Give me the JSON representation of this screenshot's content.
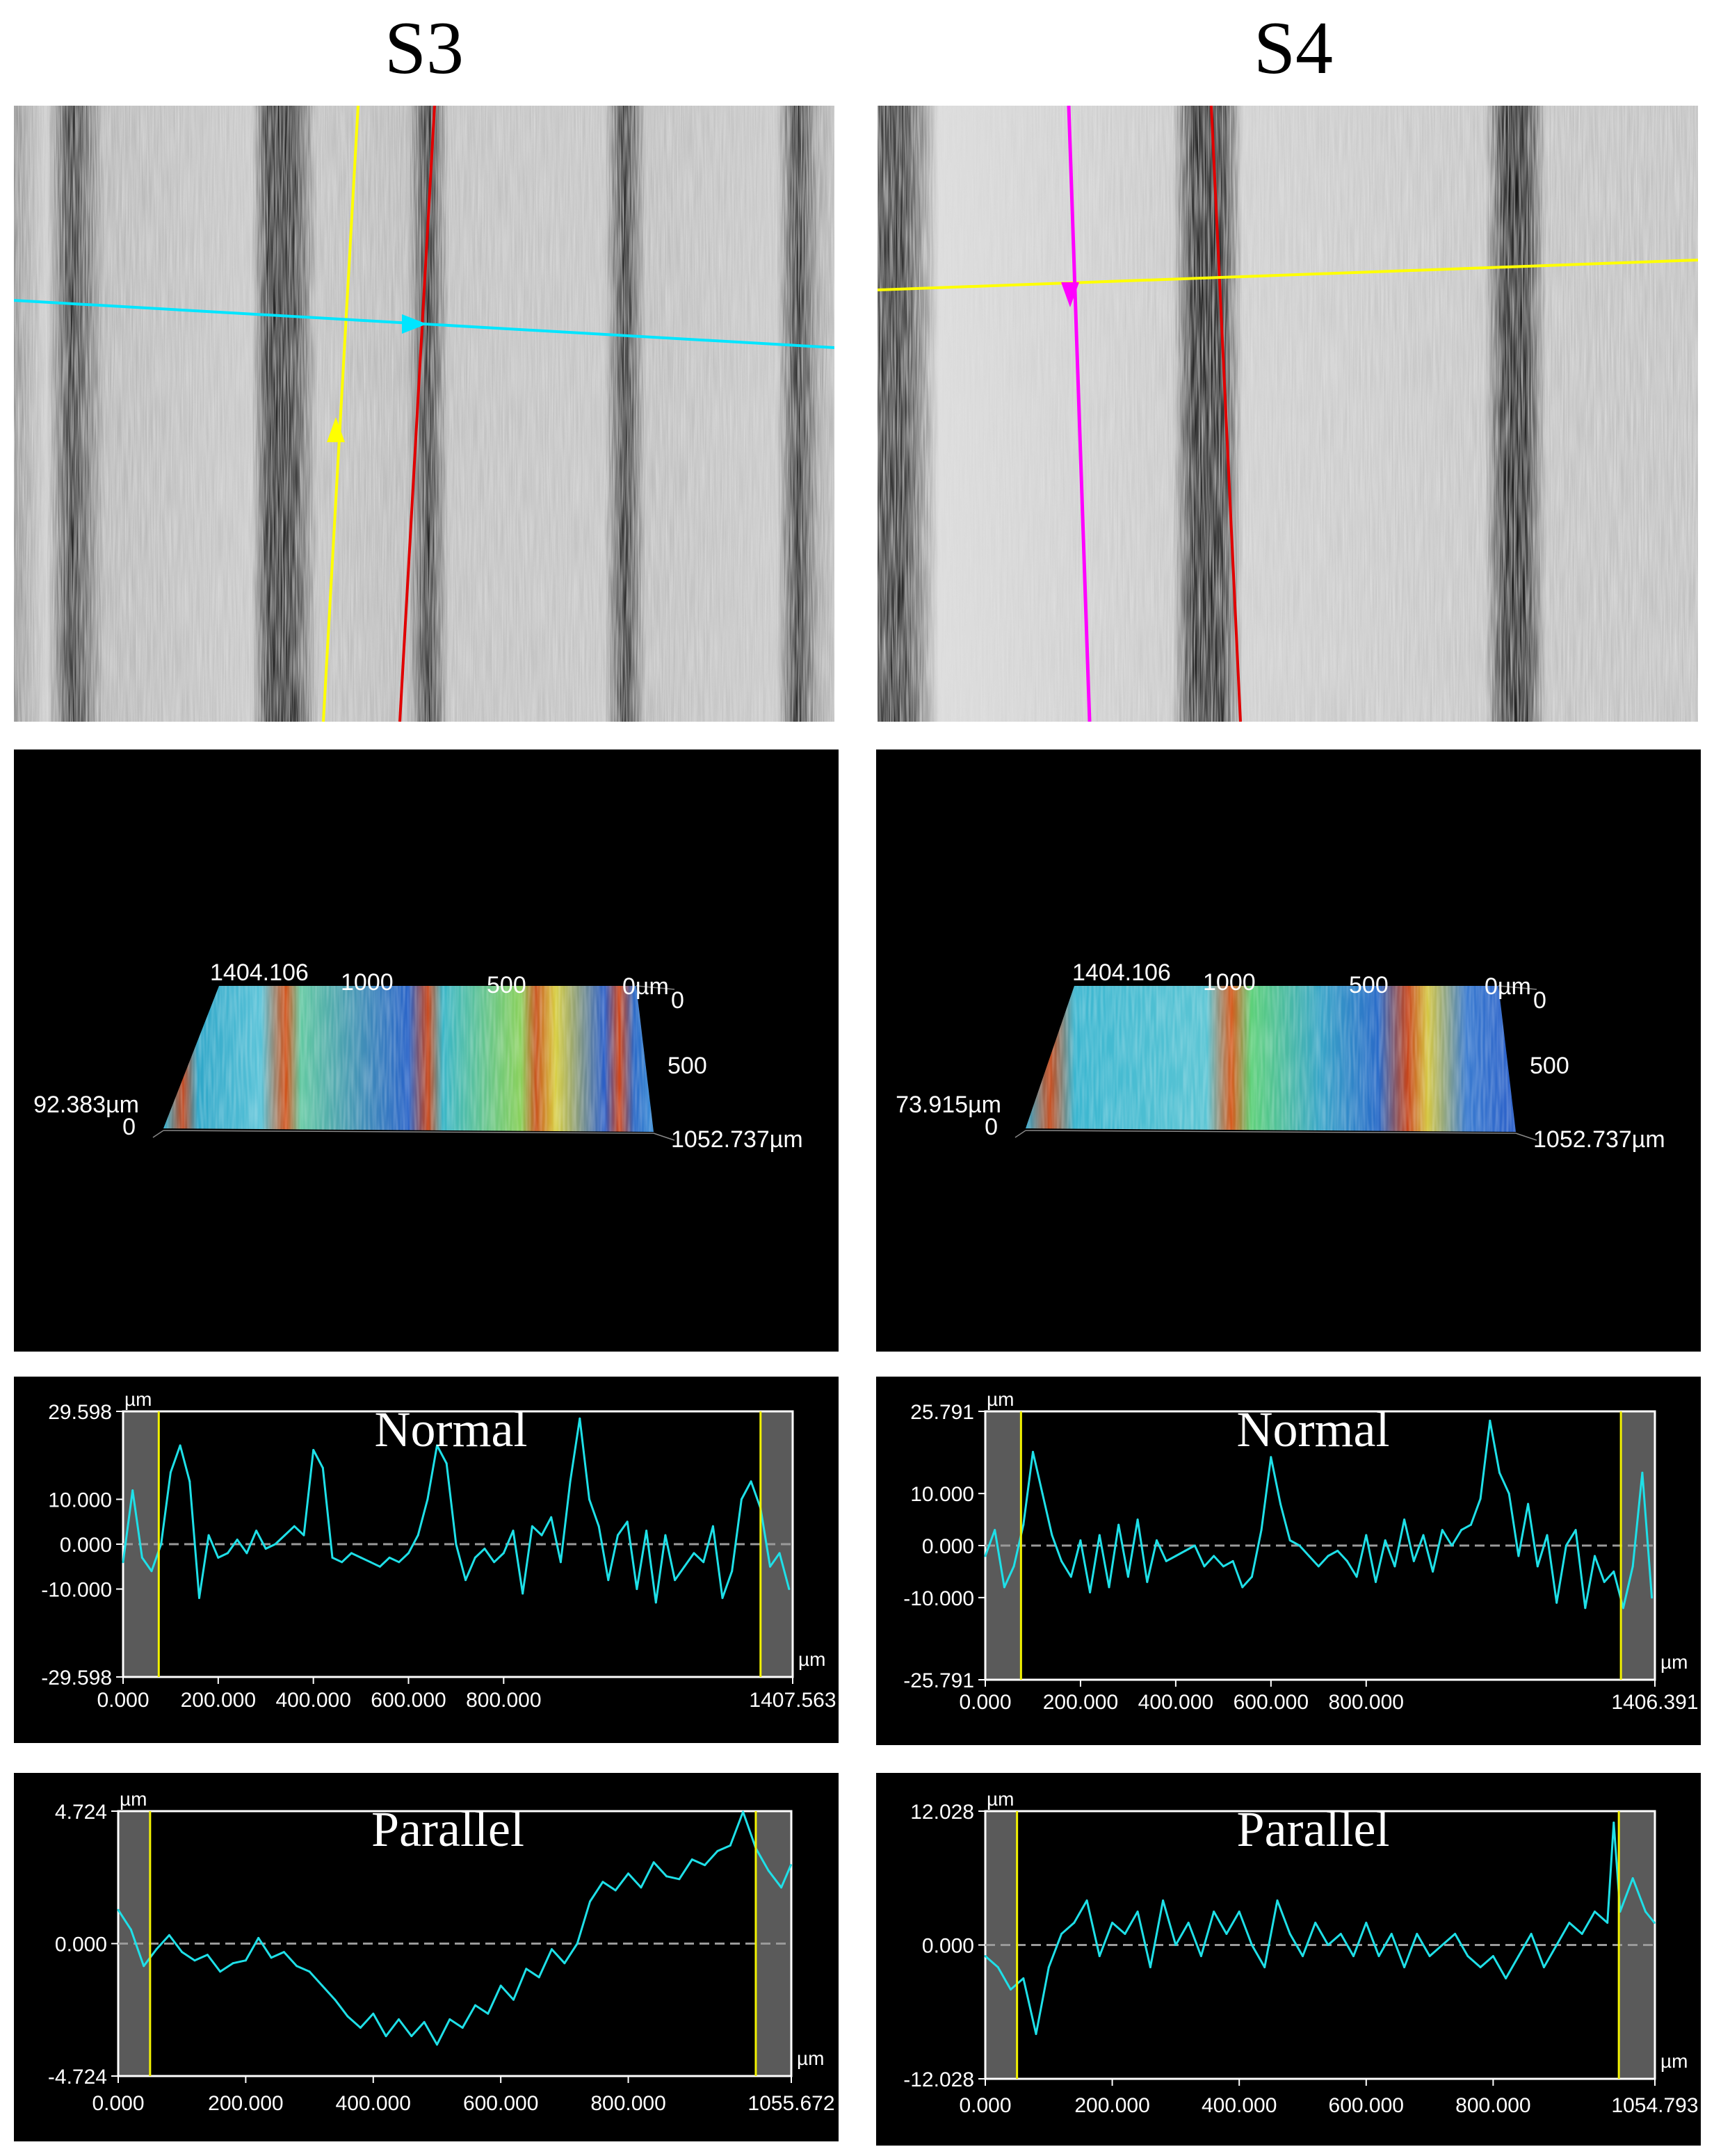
{
  "columns": [
    {
      "title": "S3",
      "surface3d": {
        "x_ticks": [
          "1404.106",
          "1000",
          "500",
          "0µm"
        ],
        "y_ticks": [
          "0",
          "500",
          "1052.737µm"
        ],
        "z_ticks": [
          "92.383µm",
          "0"
        ]
      }
    },
    {
      "title": "S4",
      "surface3d": {
        "x_ticks": [
          "1404.106",
          "1000",
          "500",
          "0µm"
        ],
        "y_ticks": [
          "0",
          "500",
          "1052.737µm"
        ],
        "z_ticks": [
          "73.915µm",
          "0"
        ]
      }
    }
  ],
  "colors": {
    "trace": "#1ee0e8",
    "marker": "#f2f200",
    "frame": "#ffffff",
    "zero_line": "#9a9a9a",
    "excluded_region": "#5a5a5a",
    "s3_line_vertical": "#ffff00",
    "s3_line_horizontal": "#00e5ff",
    "s3_line_red": "#e00000",
    "s4_line_vertical": "#ff00ff",
    "s4_line_horizontal": "#ffff00",
    "s4_line_red": "#e00000"
  },
  "chart_data": [
    {
      "type": "line",
      "title": "Normal",
      "sample": "S3",
      "unit_x": "µm",
      "unit_y": "µm",
      "ylim": [
        -29.598,
        29.598
      ],
      "xlim": [
        0,
        1407.563
      ],
      "y_ticks": [
        "29.598",
        "10.000",
        "0.000",
        "-10.000",
        "-29.598"
      ],
      "x_ticks": [
        "0.000",
        "200.000",
        "400.000",
        "600.000",
        "800.000",
        "1407.563"
      ],
      "markers_x": [
        75,
        1340
      ],
      "x": [
        0,
        20,
        40,
        60,
        80,
        100,
        120,
        140,
        160,
        180,
        200,
        220,
        240,
        260,
        280,
        300,
        320,
        340,
        360,
        380,
        400,
        420,
        440,
        460,
        480,
        500,
        520,
        540,
        560,
        580,
        600,
        620,
        640,
        660,
        680,
        700,
        720,
        740,
        760,
        780,
        800,
        820,
        840,
        860,
        880,
        900,
        920,
        940,
        960,
        980,
        1000,
        1020,
        1040,
        1060,
        1080,
        1100,
        1120,
        1140,
        1160,
        1180,
        1200,
        1220,
        1240,
        1260,
        1280,
        1300,
        1320,
        1340,
        1360,
        1380,
        1400
      ],
      "values": [
        -4,
        12,
        -3,
        -6,
        0,
        16,
        22,
        14,
        -12,
        2,
        -3,
        -2,
        1,
        -2,
        3,
        -1,
        0,
        2,
        4,
        2,
        21,
        17,
        -3,
        -4,
        -2,
        -3,
        -4,
        -5,
        -3,
        -4,
        -2,
        2,
        10,
        22,
        18,
        0,
        -8,
        -3,
        -1,
        -4,
        -2,
        3,
        -11,
        4,
        2,
        6,
        -4,
        14,
        28,
        10,
        4,
        -8,
        2,
        5,
        -10,
        3,
        -13,
        2,
        -8,
        -5,
        -2,
        -4,
        4,
        -12,
        -6,
        10,
        14,
        8,
        -5,
        -2,
        -10
      ]
    },
    {
      "type": "line",
      "title": "Normal",
      "sample": "S4",
      "unit_x": "µm",
      "unit_y": "µm",
      "ylim": [
        -25.791,
        25.791
      ],
      "xlim": [
        0,
        1406.391
      ],
      "y_ticks": [
        "25.791",
        "10.000",
        "0.000",
        "-10.000",
        "-25.791"
      ],
      "x_ticks": [
        "0.000",
        "200.000",
        "400.000",
        "600.000",
        "800.000",
        "1406.391"
      ],
      "markers_x": [
        75,
        1335
      ],
      "x": [
        0,
        20,
        40,
        60,
        80,
        100,
        120,
        140,
        160,
        180,
        200,
        220,
        240,
        260,
        280,
        300,
        320,
        340,
        360,
        380,
        400,
        420,
        440,
        460,
        480,
        500,
        520,
        540,
        560,
        580,
        600,
        620,
        640,
        660,
        680,
        700,
        720,
        740,
        760,
        780,
        800,
        820,
        840,
        860,
        880,
        900,
        920,
        940,
        960,
        980,
        1000,
        1020,
        1040,
        1060,
        1080,
        1100,
        1120,
        1140,
        1160,
        1180,
        1200,
        1220,
        1240,
        1260,
        1280,
        1300,
        1320,
        1340,
        1360,
        1380,
        1400
      ],
      "values": [
        -2,
        3,
        -8,
        -4,
        4,
        18,
        10,
        2,
        -3,
        -6,
        1,
        -9,
        2,
        -8,
        4,
        -6,
        5,
        -7,
        1,
        -3,
        -2,
        -1,
        0,
        -4,
        -2,
        -4,
        -3,
        -8,
        -6,
        3,
        17,
        8,
        1,
        0,
        -2,
        -4,
        -2,
        -1,
        -3,
        -6,
        2,
        -7,
        1,
        -4,
        5,
        -3,
        2,
        -5,
        3,
        0,
        3,
        4,
        9,
        24,
        14,
        10,
        -2,
        8,
        -4,
        2,
        -11,
        0,
        3,
        -12,
        -2,
        -7,
        -5,
        -12,
        -4,
        14,
        -10
      ]
    },
    {
      "type": "line",
      "title": "Parallel",
      "sample": "S3",
      "unit_x": "µm",
      "unit_y": "µm",
      "ylim": [
        -4.724,
        4.724
      ],
      "xlim": [
        0,
        1055.672
      ],
      "y_ticks": [
        "4.724",
        "0.000",
        "-4.724"
      ],
      "x_ticks": [
        "0.000",
        "200.000",
        "400.000",
        "600.000",
        "800.000",
        "1055.672"
      ],
      "markers_x": [
        50,
        1000
      ],
      "x": [
        0,
        20,
        40,
        60,
        80,
        100,
        120,
        140,
        160,
        180,
        200,
        220,
        240,
        260,
        280,
        300,
        320,
        340,
        360,
        380,
        400,
        420,
        440,
        460,
        480,
        500,
        520,
        540,
        560,
        580,
        600,
        620,
        640,
        660,
        680,
        700,
        720,
        740,
        760,
        780,
        800,
        820,
        840,
        860,
        880,
        900,
        920,
        940,
        960,
        980,
        1000,
        1020,
        1040,
        1055
      ],
      "values": [
        1.2,
        0.5,
        -0.8,
        -0.2,
        0.3,
        -0.3,
        -0.6,
        -0.4,
        -1.0,
        -0.7,
        -0.6,
        0.2,
        -0.5,
        -0.3,
        -0.8,
        -1.0,
        -1.5,
        -2.0,
        -2.6,
        -3.0,
        -2.5,
        -3.3,
        -2.7,
        -3.3,
        -2.8,
        -3.6,
        -2.7,
        -3.0,
        -2.2,
        -2.5,
        -1.5,
        -2.0,
        -0.9,
        -1.2,
        -0.2,
        -0.7,
        0.0,
        1.5,
        2.2,
        1.9,
        2.5,
        2.0,
        2.9,
        2.4,
        2.3,
        3.0,
        2.8,
        3.3,
        3.5,
        4.7,
        3.4,
        2.6,
        2.0,
        2.8
      ]
    },
    {
      "type": "line",
      "title": "Parallel",
      "sample": "S4",
      "unit_x": "µm",
      "unit_y": "µm",
      "ylim": [
        -12.028,
        12.028
      ],
      "xlim": [
        0,
        1054.793
      ],
      "y_ticks": [
        "12.028",
        "0.000",
        "-12.028"
      ],
      "x_ticks": [
        "0.000",
        "200.000",
        "400.000",
        "600.000",
        "800.000",
        "1054.793"
      ],
      "markers_x": [
        50,
        998
      ],
      "x": [
        0,
        20,
        40,
        60,
        80,
        100,
        120,
        140,
        160,
        180,
        200,
        220,
        240,
        260,
        280,
        300,
        320,
        340,
        360,
        380,
        400,
        420,
        440,
        460,
        480,
        500,
        520,
        540,
        560,
        580,
        600,
        620,
        640,
        660,
        680,
        700,
        720,
        740,
        760,
        780,
        800,
        820,
        840,
        860,
        880,
        900,
        920,
        940,
        960,
        980,
        990,
        1000,
        1020,
        1040,
        1054
      ],
      "values": [
        -1,
        -2,
        -4,
        -3,
        -8,
        -2,
        1,
        2,
        4,
        -1,
        2,
        1,
        3,
        -2,
        4,
        0,
        2,
        -1,
        3,
        1,
        3,
        0,
        -2,
        4,
        1,
        -1,
        2,
        0,
        1,
        -1,
        2,
        -1,
        1,
        -2,
        1,
        -1,
        0,
        1,
        -1,
        -2,
        -1,
        -3,
        -1,
        1,
        -2,
        0,
        2,
        1,
        3,
        2,
        11,
        3,
        6,
        3,
        2
      ]
    }
  ]
}
